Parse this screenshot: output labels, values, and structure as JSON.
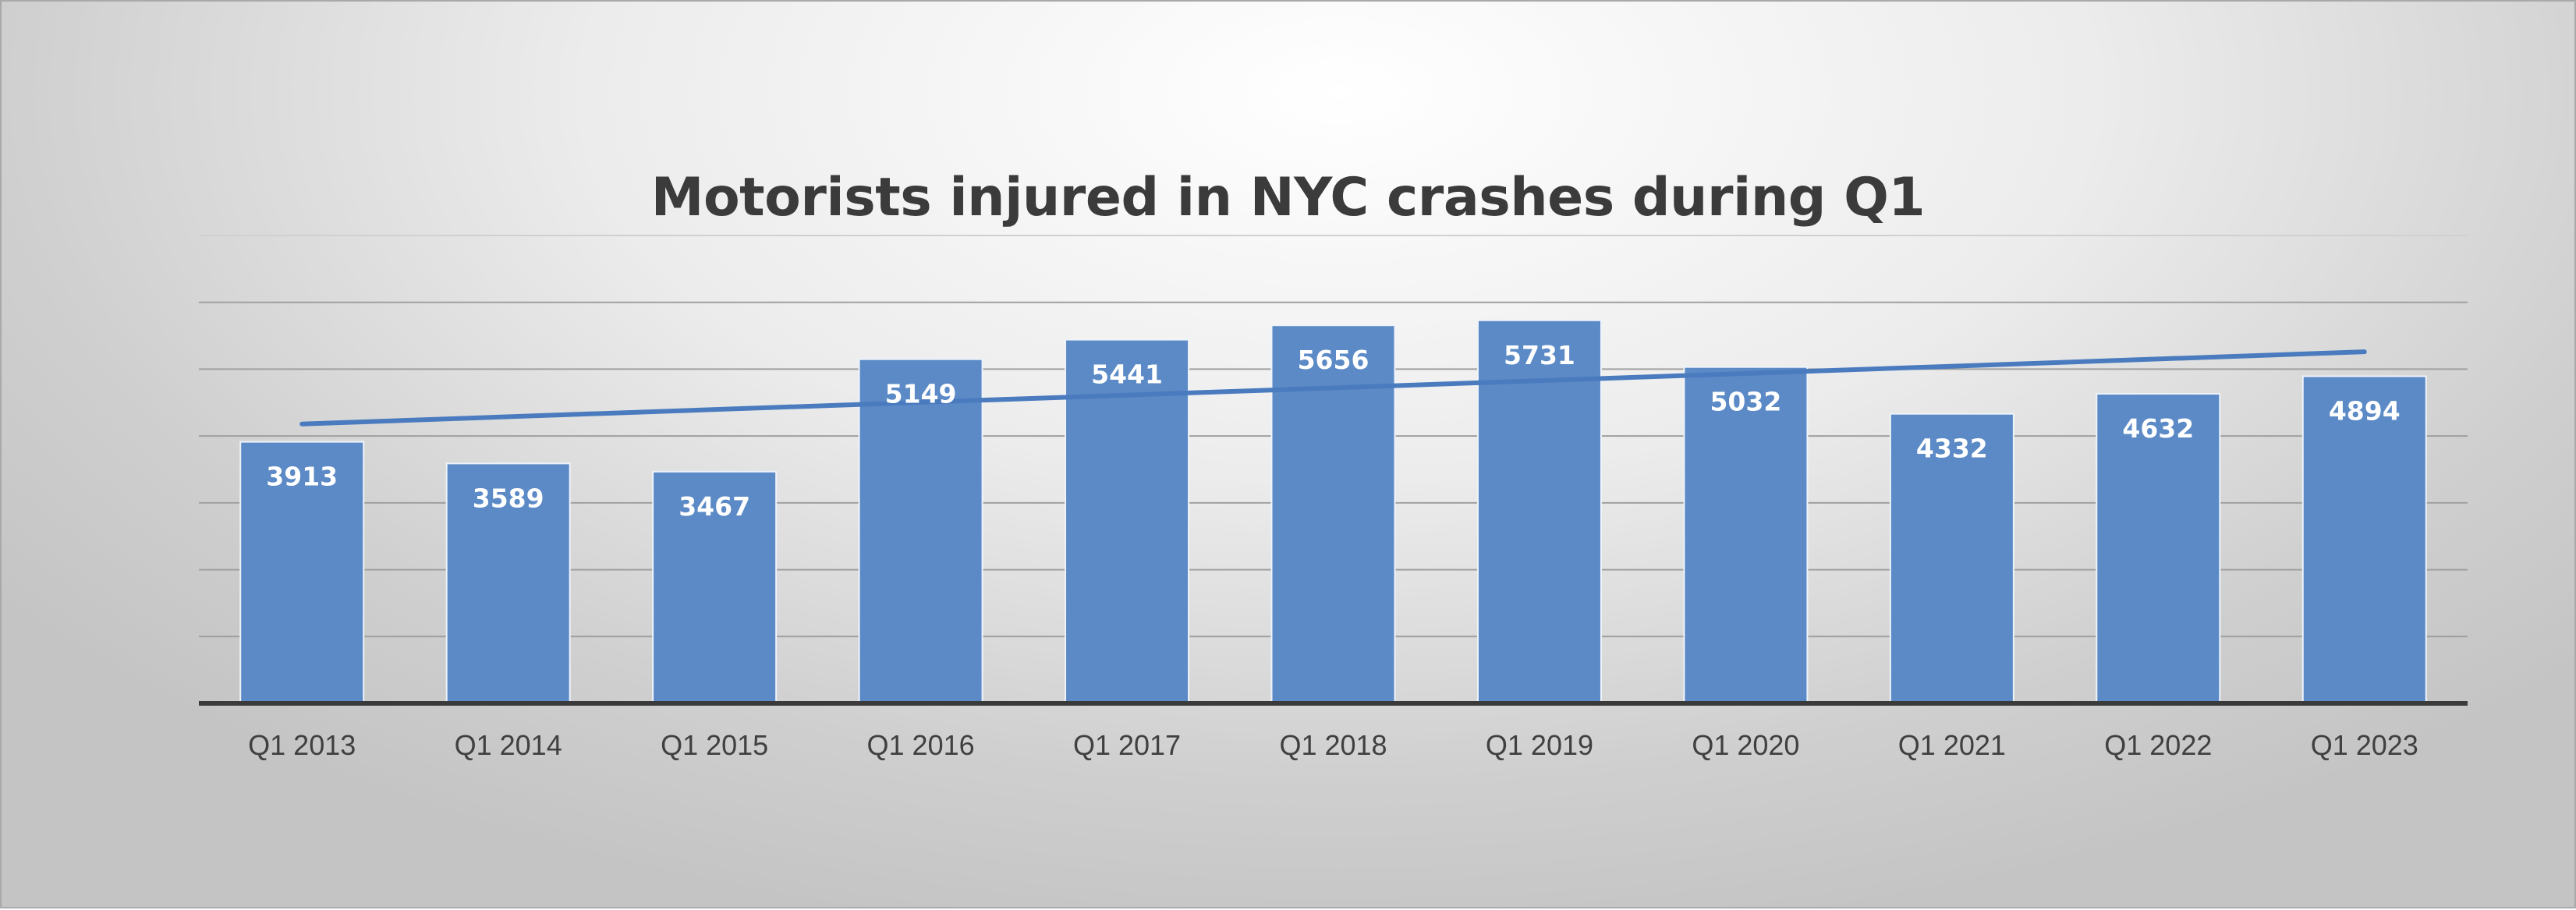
{
  "chart_data": {
    "type": "bar",
    "title": "Motorists injured in NYC crashes during Q1",
    "categories": [
      "Q1 2013",
      "Q1 2014",
      "Q1 2015",
      "Q1 2016",
      "Q1 2017",
      "Q1 2018",
      "Q1 2019",
      "Q1 2020",
      "Q1 2021",
      "Q1 2022",
      "Q1 2023"
    ],
    "series": [
      {
        "values": [
          3913,
          3589,
          3467,
          5149,
          5441,
          5656,
          5731,
          5032,
          4332,
          4632,
          4894
        ]
      }
    ],
    "trendline": {
      "type": "linear",
      "start": 4180,
      "end": 5260
    },
    "ylim": [
      0,
      7000
    ],
    "yticks_shown": false,
    "grid": true,
    "data_labels": true,
    "legend": "none",
    "xlabel": "",
    "ylabel": "",
    "colors": {
      "bar": "#5b8ac6",
      "trendline": "#4a7bbf",
      "axis": "#3a3a3a",
      "grid": "#a0a0a0"
    }
  }
}
